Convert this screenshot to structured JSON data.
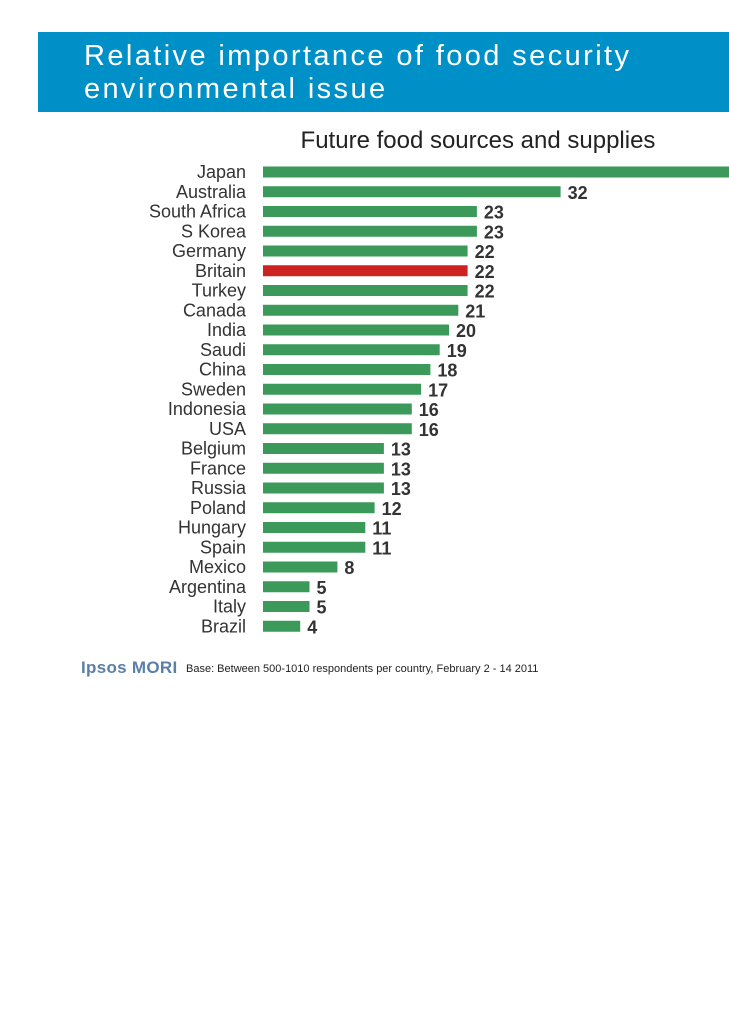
{
  "header": {
    "title": "Relative importance of food security\nenvironmental issue"
  },
  "chart_data": {
    "type": "bar",
    "orientation": "horizontal",
    "title": "Future food sources and supplies",
    "categories": [
      "Japan",
      "Australia",
      "South Africa",
      "S Korea",
      "Germany",
      "Britain",
      "Turkey",
      "Canada",
      "India",
      "Saudi",
      "China",
      "Sweden",
      "Indonesia",
      "USA",
      "Belgium",
      "France",
      "Russia",
      "Poland",
      "Hungary",
      "Spain",
      "Mexico",
      "Argentina",
      "Italy",
      "Brazil"
    ],
    "values": [
      null,
      32,
      23,
      23,
      22,
      22,
      22,
      21,
      20,
      19,
      18,
      17,
      16,
      16,
      13,
      13,
      13,
      12,
      11,
      11,
      8,
      5,
      5,
      4
    ],
    "value_labels": [
      "",
      "32",
      "23",
      "23",
      "22",
      "22",
      "22",
      "21",
      "20",
      "19",
      "18",
      "17",
      "16",
      "16",
      "13",
      "13",
      "13",
      "12",
      "11",
      "11",
      "8",
      "5",
      "5",
      "4"
    ],
    "highlight_category": "Britain",
    "xlim": [
      0,
      50
    ],
    "colors": {
      "bar": "#3b9a5a",
      "highlight": "#cc2222",
      "text": "#333333"
    },
    "note": "Japan bar extends beyond the visible area; its value is not shown"
  },
  "footer": {
    "logo": "Ipsos MORI",
    "base_note": "Base: Between 500-1010 respondents per country, February 2 - 14 2011"
  }
}
